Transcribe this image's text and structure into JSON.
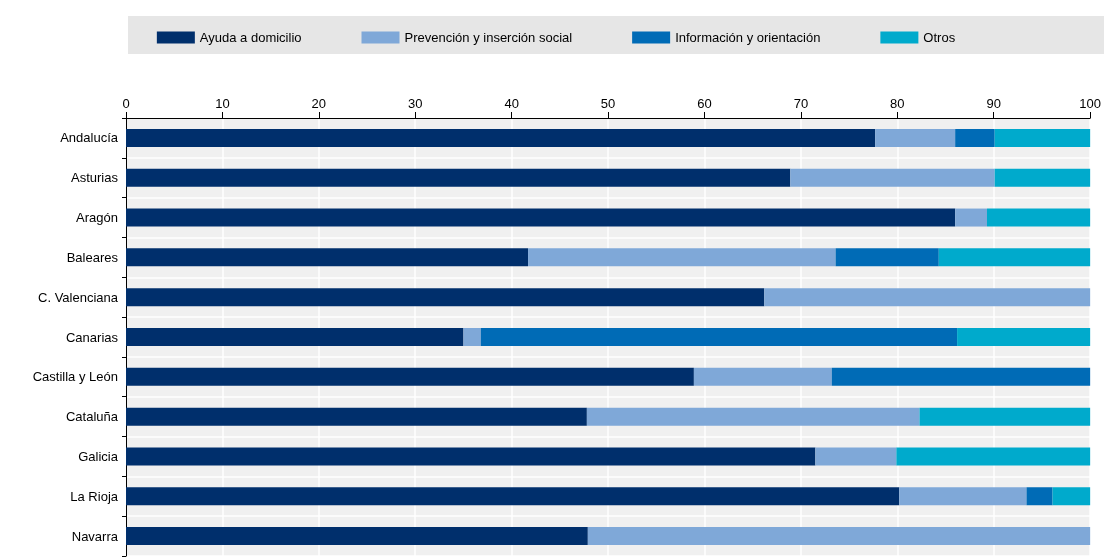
{
  "chart_data": {
    "type": "bar",
    "orientation": "horizontal",
    "stacked": true,
    "categories": [
      "Andalucía",
      "Asturias",
      "Aragón",
      "Baleares",
      "C. Valenciana",
      "Canarias",
      "Castilla y León",
      "Cataluña",
      "Galicia",
      "La Rioja",
      "Navarra"
    ],
    "series": [
      {
        "name": "Ayuda a domicilio",
        "color": "#002f6c",
        "values": [
          77.7,
          68.9,
          86.0,
          41.7,
          66.2,
          35.0,
          58.9,
          47.8,
          71.5,
          80.2,
          47.9
        ]
      },
      {
        "name": "Prevención y inserción social",
        "color": "#7fa8d8",
        "values": [
          8.3,
          21.2,
          3.3,
          31.9,
          33.8,
          1.8,
          14.3,
          34.5,
          8.4,
          13.2,
          52.1
        ]
      },
      {
        "name": "Información y orientación",
        "color": "#006bb6",
        "values": [
          4.1,
          0,
          0,
          10.7,
          0,
          49.4,
          26.8,
          0,
          0,
          2.7,
          0
        ]
      },
      {
        "name": "Otros",
        "color": "#00aacc",
        "values": [
          9.9,
          9.9,
          10.7,
          15.7,
          0,
          13.8,
          0,
          17.7,
          20.1,
          3.9,
          0
        ]
      }
    ],
    "xlim": [
      0,
      100
    ],
    "xticks": [
      0,
      10,
      20,
      30,
      40,
      50,
      60,
      70,
      80,
      90,
      100
    ],
    "grid": true,
    "legend": "top"
  }
}
